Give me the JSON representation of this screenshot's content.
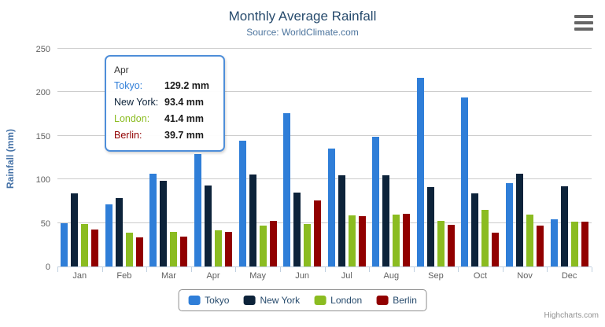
{
  "title": "Monthly Average Rainfall",
  "subtitle": "Source: WorldClimate.com",
  "credits": "Highcharts.com",
  "y_axis": {
    "title": "Rainfall (mm)",
    "tick_labels": [
      "0",
      "50",
      "100",
      "150",
      "200",
      "250"
    ]
  },
  "chart_data": {
    "type": "bar",
    "title": "Monthly Average Rainfall",
    "subtitle": "Source: WorldClimate.com",
    "xlabel": "",
    "ylabel": "Rainfall (mm)",
    "ylim": [
      0,
      250
    ],
    "grid": true,
    "legend_position": "bottom",
    "categories": [
      "Jan",
      "Feb",
      "Mar",
      "Apr",
      "May",
      "Jun",
      "Jul",
      "Aug",
      "Sep",
      "Oct",
      "Nov",
      "Dec"
    ],
    "series": [
      {
        "name": "Tokyo",
        "color": "#2f7ed8",
        "values": [
          49.9,
          71.5,
          106.4,
          129.2,
          144.0,
          176.0,
          135.6,
          148.5,
          216.4,
          194.1,
          95.6,
          54.4
        ]
      },
      {
        "name": "New York",
        "color": "#0d233a",
        "values": [
          83.6,
          78.8,
          98.5,
          93.4,
          106.0,
          84.5,
          105.0,
          104.3,
          91.2,
          83.5,
          106.6,
          92.3
        ]
      },
      {
        "name": "London",
        "color": "#8bbc21",
        "values": [
          48.9,
          38.8,
          39.3,
          41.4,
          47.0,
          48.3,
          59.0,
          59.6,
          52.4,
          65.2,
          59.3,
          51.2
        ]
      },
      {
        "name": "Berlin",
        "color": "#910000",
        "values": [
          42.4,
          33.2,
          34.5,
          39.7,
          52.6,
          75.5,
          57.4,
          60.4,
          47.6,
          39.1,
          46.8,
          51.1
        ]
      }
    ]
  },
  "tooltip": {
    "header": "Apr",
    "rows": [
      {
        "label": "Tokyo:",
        "value": "129.2 mm",
        "color": "#2f7ed8"
      },
      {
        "label": "New York:",
        "value": "93.4 mm",
        "color": "#0d233a"
      },
      {
        "label": "London:",
        "value": "41.4 mm",
        "color": "#8bbc21"
      },
      {
        "label": "Berlin:",
        "value": "39.7 mm",
        "color": "#910000"
      }
    ]
  },
  "colors": {
    "grid": "#cccccc",
    "axis_line": "#c0d0e0",
    "tooltip_border": "#4e8ed9"
  }
}
